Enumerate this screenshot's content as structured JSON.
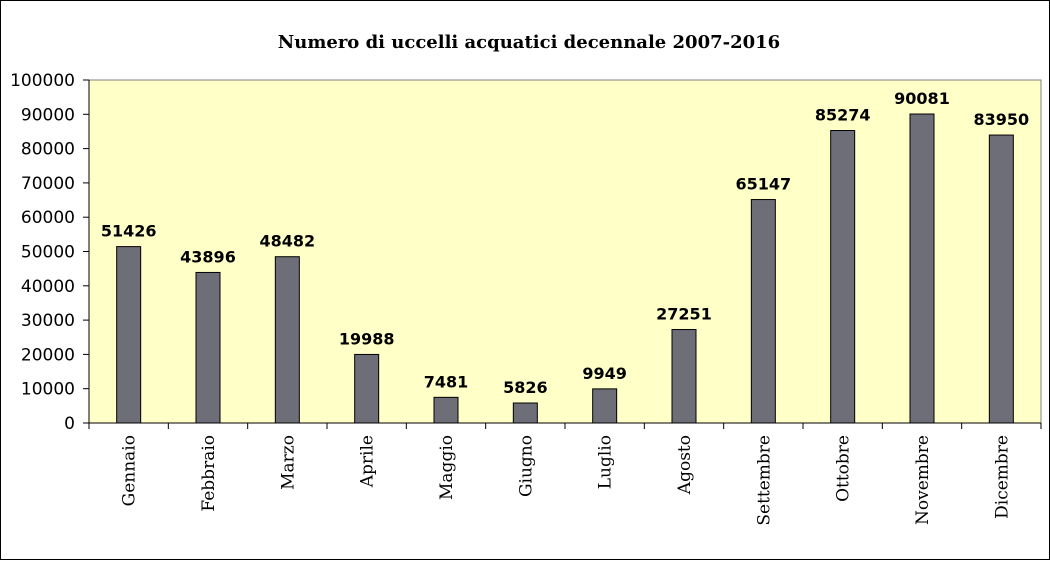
{
  "chart_data": {
    "type": "bar",
    "title": "Numero di uccelli acquatici decennale 2007-2016",
    "xlabel": "",
    "ylabel": "",
    "categories": [
      "Gennaio",
      "Febbraio",
      "Marzo",
      "Aprile",
      "Maggio",
      "Giugno",
      "Luglio",
      "Agosto",
      "Settembre",
      "Ottobre",
      "Novembre",
      "Dicembre"
    ],
    "values": [
      51426,
      43896,
      48482,
      19988,
      7481,
      5826,
      9949,
      27251,
      65147,
      85274,
      90081,
      83950
    ],
    "ylim": [
      0,
      100000
    ],
    "yticks": [
      0,
      10000,
      20000,
      30000,
      40000,
      50000,
      60000,
      70000,
      80000,
      90000,
      100000
    ],
    "grid": false,
    "legend": "none",
    "colors": {
      "plot_background": "#ffffc8",
      "bar_fill": "#6e6e78",
      "bar_stroke": "#000000"
    }
  }
}
